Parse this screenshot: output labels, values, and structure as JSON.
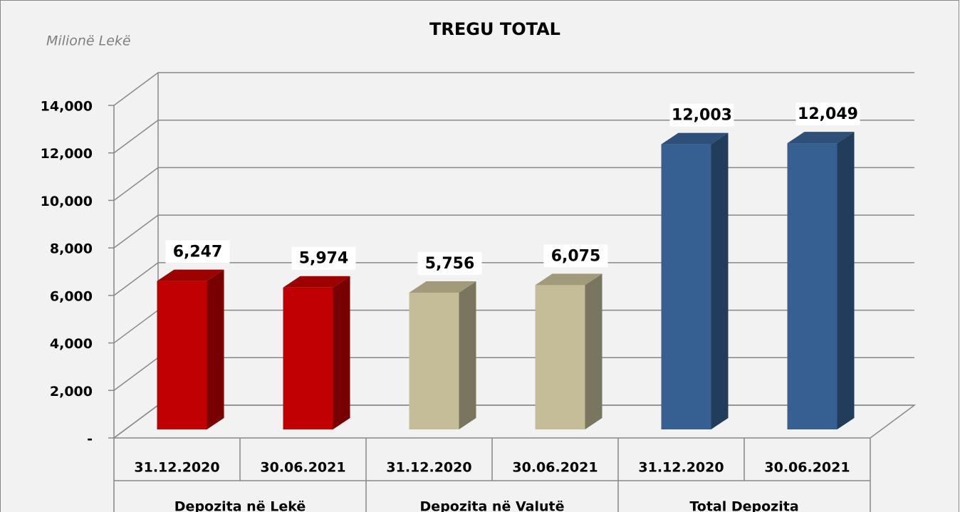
{
  "chart_data": {
    "type": "bar3d",
    "title": "TREGU TOTAL",
    "unit_label": "Milionë Lekë",
    "ylim": [
      0,
      14000
    ],
    "yticks": [
      {
        "value": 0,
        "label": "-"
      },
      {
        "value": 2000,
        "label": "2,000"
      },
      {
        "value": 4000,
        "label": "4,000"
      },
      {
        "value": 6000,
        "label": "6,000"
      },
      {
        "value": 8000,
        "label": "8,000"
      },
      {
        "value": 10000,
        "label": "10,000"
      },
      {
        "value": 12000,
        "label": "12,000"
      },
      {
        "value": 14000,
        "label": "14,000"
      }
    ],
    "grid": true,
    "groups": [
      {
        "name": "Depozita në Lekë",
        "color": "#c00000",
        "categories": [
          "31.12.2020",
          "30.06.2021"
        ],
        "values": [
          6247,
          5974
        ],
        "value_labels": [
          "6,247",
          "5,974"
        ]
      },
      {
        "name": "Depozita në Valutë",
        "color": "#c4bd97",
        "categories": [
          "31.12.2020",
          "30.06.2021"
        ],
        "values": [
          5756,
          6075
        ],
        "value_labels": [
          "5,756",
          "6,075"
        ]
      },
      {
        "name": "Total Depozita",
        "color": "#376092",
        "categories": [
          "31.12.2020",
          "30.06.2021"
        ],
        "values": [
          12003,
          12049
        ],
        "value_labels": [
          "12,003",
          "12,049"
        ]
      }
    ]
  }
}
